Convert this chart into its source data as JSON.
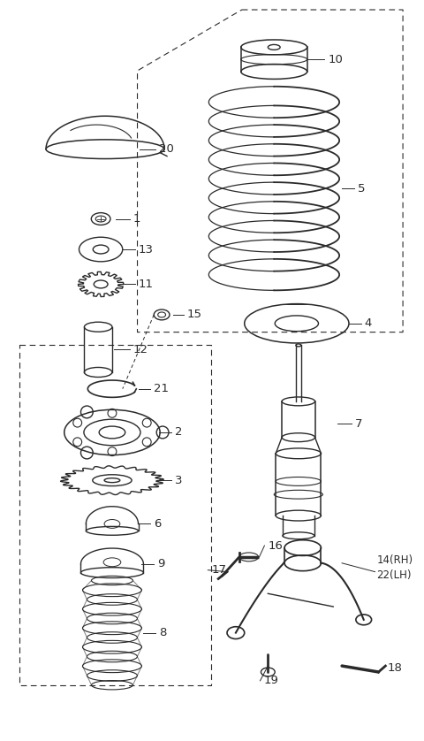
{
  "bg_color": "#ffffff",
  "line_color": "#2a2a2a",
  "fig_width": 4.8,
  "fig_height": 8.38,
  "dpi": 100
}
